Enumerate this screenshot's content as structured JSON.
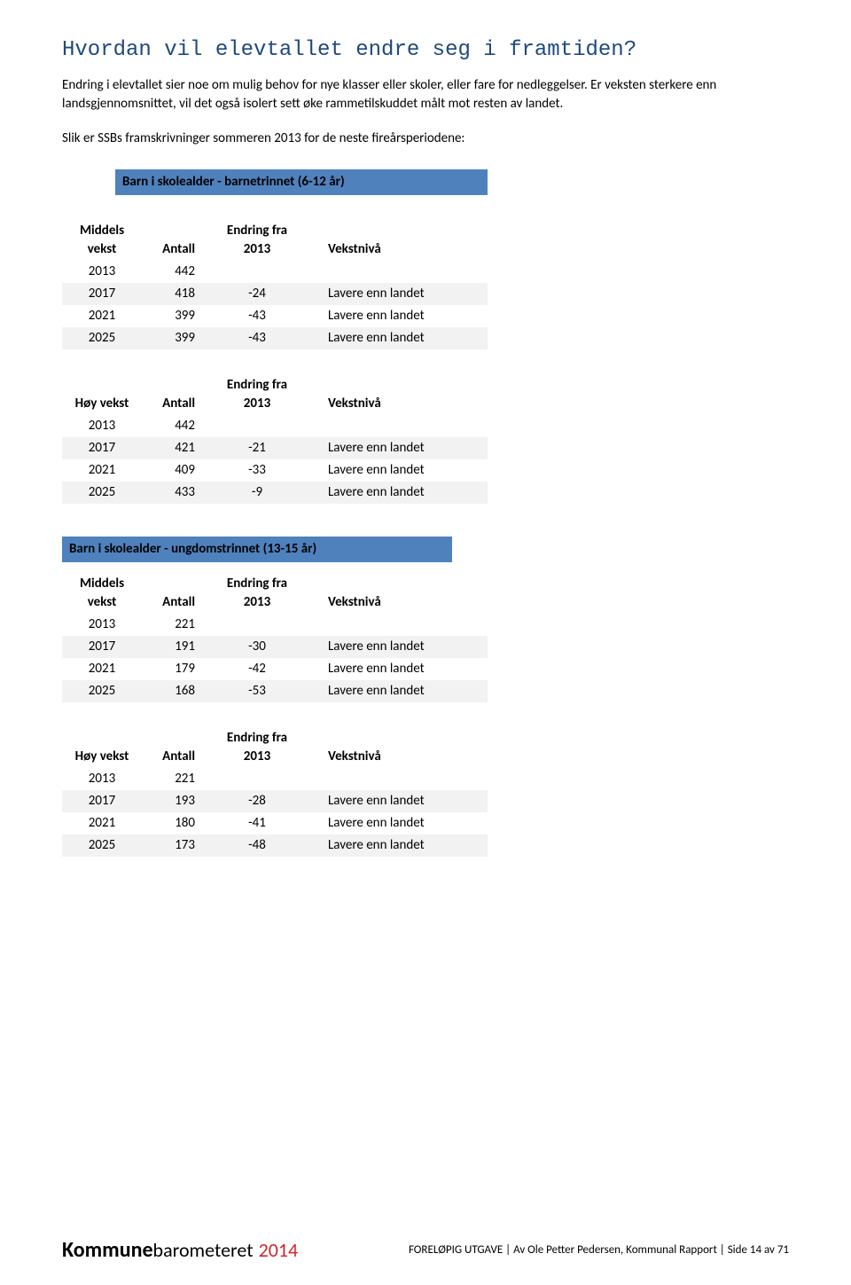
{
  "title": "Hvordan vil elevtallet endre seg i framtiden?",
  "intro": "Endring i elevtallet sier noe om mulig behov for nye klasser eller skoler, eller fare for nedleggelser. Er veksten sterkere enn landsgjennomsnittet, vil det også isolert sett øke rammetilskuddet målt mot resten av landet.",
  "intro2": "Slik er SSBs framskrivninger sommeren 2013 for de neste fireårsperiodene:",
  "section1_title": "Barn i skolealder - barnetrinnet (6-12 år)",
  "section2_title": "Barn i skolealder - ungdomstrinnet (13-15 år)",
  "col_labels": {
    "middels": "Middels vekst",
    "hoy": "Høy vekst",
    "antall": "Antall",
    "endring": "Endring fra 2013",
    "vekstniva": "Vekstnivå"
  },
  "t1": {
    "rows": [
      {
        "year": "2013",
        "antall": "442",
        "endring": "",
        "vekst": ""
      },
      {
        "year": "2017",
        "antall": "418",
        "endring": "-24",
        "vekst": "Lavere enn landet"
      },
      {
        "year": "2021",
        "antall": "399",
        "endring": "-43",
        "vekst": "Lavere enn landet"
      },
      {
        "year": "2025",
        "antall": "399",
        "endring": "-43",
        "vekst": "Lavere enn landet"
      }
    ]
  },
  "t2": {
    "rows": [
      {
        "year": "2013",
        "antall": "442",
        "endring": "",
        "vekst": ""
      },
      {
        "year": "2017",
        "antall": "421",
        "endring": "-21",
        "vekst": "Lavere enn landet"
      },
      {
        "year": "2021",
        "antall": "409",
        "endring": "-33",
        "vekst": "Lavere enn landet"
      },
      {
        "year": "2025",
        "antall": "433",
        "endring": "-9",
        "vekst": "Lavere enn landet"
      }
    ]
  },
  "t3": {
    "rows": [
      {
        "year": "2013",
        "antall": "221",
        "endring": "",
        "vekst": ""
      },
      {
        "year": "2017",
        "antall": "191",
        "endring": "-30",
        "vekst": "Lavere enn landet"
      },
      {
        "year": "2021",
        "antall": "179",
        "endring": "-42",
        "vekst": "Lavere enn landet"
      },
      {
        "year": "2025",
        "antall": "168",
        "endring": "-53",
        "vekst": "Lavere enn landet"
      }
    ]
  },
  "t4": {
    "rows": [
      {
        "year": "2013",
        "antall": "221",
        "endring": "",
        "vekst": ""
      },
      {
        "year": "2017",
        "antall": "193",
        "endring": "-28",
        "vekst": "Lavere enn landet"
      },
      {
        "year": "2021",
        "antall": "180",
        "endring": "-41",
        "vekst": "Lavere enn landet"
      },
      {
        "year": "2025",
        "antall": "173",
        "endring": "-48",
        "vekst": "Lavere enn landet"
      }
    ]
  },
  "logo": {
    "bold": "Kommune",
    "rest": "barometeret",
    "year": "2014"
  },
  "footer_text": "FORELØPIG UTGAVE | Av Ole Petter Pedersen, Kommunal Rapport | Side 14 av 71",
  "colors": {
    "header_bg": "#4f81bd",
    "shade": "#f2f2f2",
    "title": "#1f497d",
    "logo_red": "#d2232a"
  }
}
